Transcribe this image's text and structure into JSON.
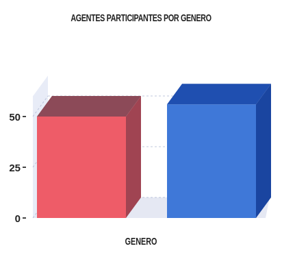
{
  "chart_data": {
    "type": "bar",
    "title": "AGENTES PARTICIPANTES POR GENERO",
    "xlabel": "GENERO",
    "ylabel": "",
    "categories": [
      "",
      ""
    ],
    "values": [
      50,
      56
    ],
    "ylim": [
      0,
      60
    ],
    "yticks": [
      0,
      25,
      50
    ],
    "grid": true,
    "three_d": true,
    "colors": {
      "bar1_front": "#ee5c68",
      "bar1_top": "#8c4a58",
      "bar1_side": "#a04452",
      "bar2_front": "#3f78d8",
      "bar2_top": "#1f4fb0",
      "bar2_side": "#1a45a0",
      "wall": "#d8dff2",
      "floor": "#d0d6ea",
      "grid": "#9aa6c8"
    }
  }
}
